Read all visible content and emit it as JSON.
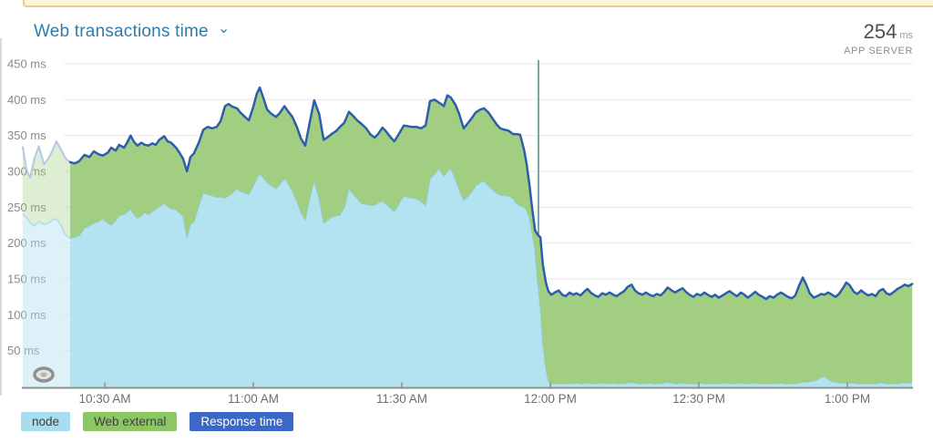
{
  "header": {
    "title": "Web transactions time",
    "chevron_icon": "⌄",
    "value": "254",
    "value_unit": "ms",
    "value_caption": "APP SERVER"
  },
  "legend": [
    {
      "label": "node",
      "bg": "#a6ddef",
      "fg": "#3f3f3f"
    },
    {
      "label": "Web external",
      "bg": "#8cc763",
      "fg": "#3f3f3f"
    },
    {
      "label": "Response time",
      "bg": "#3b68c7",
      "fg": "#ffffff"
    }
  ],
  "colors": {
    "node_fill": "#abdfee",
    "web_external_fill": "#9aca77",
    "response_line": "#2c5ea9",
    "node_edge_line": "#8fcde5",
    "faded_top_line": "#b3c7e8",
    "marker_line": "#76a4a0",
    "gridline": "#e8e8e8",
    "axis_line": "#909090",
    "axis_text": "#8a8a8a",
    "x_text": "#6e6e6e",
    "banner_fill": "#fdf4da",
    "banner_border": "#f3c987"
  },
  "chart_data": {
    "type": "area",
    "stacked": true,
    "title": "Web transactions time",
    "ylabel": "ms",
    "ylim": [
      0,
      450
    ],
    "grid": true,
    "legend_position": "bottom-left",
    "series_names": [
      "node",
      "Web external",
      "Response time"
    ],
    "note": "points are [minutes after 10:00 AM, node ms, response-time total ms]; Web external = response - node; left segment is rendered faded (older data); vertical teal marker just before 12:00 PM",
    "y_ticks": [
      {
        "value": 50,
        "label": "50 ms"
      },
      {
        "value": 100,
        "label": "100 ms"
      },
      {
        "value": 150,
        "label": "150 ms"
      },
      {
        "value": 200,
        "label": "200 ms"
      },
      {
        "value": 250,
        "label": "250 ms"
      },
      {
        "value": 300,
        "label": "300 ms"
      },
      {
        "value": 350,
        "label": "350 ms"
      },
      {
        "value": 400,
        "label": "400 ms"
      },
      {
        "value": 450,
        "label": "450 ms"
      }
    ],
    "x_ticks": [
      {
        "minutes": 30,
        "label": "10:30 AM"
      },
      {
        "minutes": 60,
        "label": "11:00 AM"
      },
      {
        "minutes": 90,
        "label": "11:30 AM"
      },
      {
        "minutes": 120,
        "label": "12:00 PM"
      },
      {
        "minutes": 150,
        "label": "12:30 PM"
      },
      {
        "minutes": 180,
        "label": "1:00 PM"
      }
    ],
    "marker_line_minutes": 117.6,
    "faded_points": [
      [
        13.4,
        240,
        335
      ],
      [
        14.2,
        236,
        302
      ],
      [
        14.9,
        228,
        291
      ],
      [
        15.8,
        224,
        318
      ],
      [
        16.7,
        230,
        335
      ],
      [
        17.7,
        226,
        310
      ],
      [
        18.6,
        228,
        318
      ],
      [
        19.5,
        232,
        330
      ],
      [
        20.2,
        234,
        342
      ],
      [
        21.2,
        224,
        330
      ],
      [
        21.9,
        213,
        320
      ],
      [
        22.5,
        209,
        315
      ],
      [
        23.0,
        207,
        313
      ]
    ],
    "points": [
      [
        23.0,
        207,
        313
      ],
      [
        23.9,
        208,
        311
      ],
      [
        24.8,
        210,
        314
      ],
      [
        25.9,
        221,
        323
      ],
      [
        26.9,
        224,
        320
      ],
      [
        27.8,
        228,
        328
      ],
      [
        28.7,
        230,
        324
      ],
      [
        29.6,
        234,
        322
      ],
      [
        30.6,
        228,
        326
      ],
      [
        31.3,
        225,
        333
      ],
      [
        32.2,
        232,
        329
      ],
      [
        32.9,
        238,
        337
      ],
      [
        33.9,
        240,
        333
      ],
      [
        34.6,
        244,
        341
      ],
      [
        35.2,
        247,
        350
      ],
      [
        35.9,
        240,
        341
      ],
      [
        36.6,
        235,
        336
      ],
      [
        37.4,
        238,
        340
      ],
      [
        38.1,
        243,
        337
      ],
      [
        38.8,
        240,
        336
      ],
      [
        39.6,
        244,
        339
      ],
      [
        40.3,
        247,
        337
      ],
      [
        41.0,
        251,
        344
      ],
      [
        42.0,
        255,
        349
      ],
      [
        42.7,
        251,
        342
      ],
      [
        43.4,
        248,
        340
      ],
      [
        44.4,
        247,
        333
      ],
      [
        45.1,
        242,
        326
      ],
      [
        45.8,
        238,
        318
      ],
      [
        46.6,
        208,
        300
      ],
      [
        47.3,
        226,
        320
      ],
      [
        48.0,
        230,
        325
      ],
      [
        49.0,
        252,
        340
      ],
      [
        49.9,
        270,
        358
      ],
      [
        50.8,
        268,
        362
      ],
      [
        51.7,
        266,
        360
      ],
      [
        52.6,
        264,
        362
      ],
      [
        53.4,
        264,
        370
      ],
      [
        54.3,
        263,
        391
      ],
      [
        55.0,
        266,
        394
      ],
      [
        55.8,
        270,
        390
      ],
      [
        56.7,
        276,
        388
      ],
      [
        57.4,
        272,
        382
      ],
      [
        58.3,
        270,
        376
      ],
      [
        59.1,
        268,
        371
      ],
      [
        60.0,
        280,
        390
      ],
      [
        60.7,
        290,
        408
      ],
      [
        61.3,
        297,
        417
      ],
      [
        62.0,
        291,
        403
      ],
      [
        62.8,
        285,
        386
      ],
      [
        63.7,
        280,
        380
      ],
      [
        64.6,
        276,
        376
      ],
      [
        65.3,
        282,
        381
      ],
      [
        66.3,
        290,
        391
      ],
      [
        67.0,
        284,
        384
      ],
      [
        67.9,
        272,
        376
      ],
      [
        68.8,
        258,
        362
      ],
      [
        69.6,
        244,
        346
      ],
      [
        70.5,
        232,
        336
      ],
      [
        71.4,
        262,
        368
      ],
      [
        72.3,
        287,
        399
      ],
      [
        73.3,
        262,
        380
      ],
      [
        74.2,
        228,
        344
      ],
      [
        75.1,
        232,
        348
      ],
      [
        75.8,
        236,
        352
      ],
      [
        76.7,
        238,
        356
      ],
      [
        77.5,
        239,
        362
      ],
      [
        78.4,
        250,
        368
      ],
      [
        79.3,
        276,
        383
      ],
      [
        80.2,
        268,
        377
      ],
      [
        81.0,
        262,
        371
      ],
      [
        81.9,
        255,
        366
      ],
      [
        82.8,
        254,
        360
      ],
      [
        83.6,
        253,
        352
      ],
      [
        84.5,
        253,
        347
      ],
      [
        85.2,
        256,
        352
      ],
      [
        86.1,
        259,
        361
      ],
      [
        86.9,
        254,
        355
      ],
      [
        87.8,
        248,
        347
      ],
      [
        88.5,
        244,
        342
      ],
      [
        89.4,
        255,
        352
      ],
      [
        90.4,
        266,
        364
      ],
      [
        91.1,
        264,
        363
      ],
      [
        92.0,
        263,
        362
      ],
      [
        92.9,
        262,
        362
      ],
      [
        93.9,
        258,
        360
      ],
      [
        94.8,
        253,
        364
      ],
      [
        95.7,
        290,
        398
      ],
      [
        96.6,
        296,
        400
      ],
      [
        97.5,
        304,
        396
      ],
      [
        98.5,
        293,
        391
      ],
      [
        99.2,
        300,
        406
      ],
      [
        99.9,
        304,
        403
      ],
      [
        100.9,
        288,
        392
      ],
      [
        101.6,
        274,
        380
      ],
      [
        102.5,
        260,
        360
      ],
      [
        103.2,
        264,
        366
      ],
      [
        104.2,
        272,
        375
      ],
      [
        104.9,
        280,
        382
      ],
      [
        105.8,
        284,
        386
      ],
      [
        106.6,
        287,
        388
      ],
      [
        107.5,
        280,
        382
      ],
      [
        108.2,
        275,
        375
      ],
      [
        109.1,
        270,
        366
      ],
      [
        109.9,
        267,
        360
      ],
      [
        110.8,
        266,
        358
      ],
      [
        111.5,
        266,
        357
      ],
      [
        112.5,
        262,
        352
      ],
      [
        113.2,
        255,
        352
      ],
      [
        113.9,
        252,
        351
      ],
      [
        114.7,
        250,
        330
      ],
      [
        115.2,
        246,
        311
      ],
      [
        115.8,
        235,
        280
      ],
      [
        116.3,
        215,
        250
      ],
      [
        116.9,
        190,
        218
      ],
      [
        117.4,
        150,
        212
      ],
      [
        118.0,
        110,
        208
      ],
      [
        118.5,
        60,
        170
      ],
      [
        119.1,
        25,
        145
      ],
      [
        119.6,
        8,
        133
      ],
      [
        120.2,
        4,
        128
      ],
      [
        120.9,
        4,
        131
      ],
      [
        121.7,
        4,
        134
      ],
      [
        122.4,
        4,
        128
      ],
      [
        123.1,
        4,
        126
      ],
      [
        123.9,
        4,
        131
      ],
      [
        124.6,
        4,
        128
      ],
      [
        125.3,
        5,
        130
      ],
      [
        126.1,
        4,
        127
      ],
      [
        126.8,
        4,
        132
      ],
      [
        127.5,
        5,
        136
      ],
      [
        128.3,
        4,
        130
      ],
      [
        129.0,
        4,
        127
      ],
      [
        129.7,
        4,
        125
      ],
      [
        130.5,
        5,
        130
      ],
      [
        131.2,
        4,
        128
      ],
      [
        132.0,
        4,
        131
      ],
      [
        132.7,
        5,
        128
      ],
      [
        133.4,
        4,
        126
      ],
      [
        134.2,
        4,
        130
      ],
      [
        134.9,
        4,
        133
      ],
      [
        135.6,
        5,
        139
      ],
      [
        136.4,
        6,
        142
      ],
      [
        137.1,
        5,
        134
      ],
      [
        137.8,
        4,
        130
      ],
      [
        138.6,
        4,
        128
      ],
      [
        139.3,
        4,
        131
      ],
      [
        140.0,
        5,
        128
      ],
      [
        140.8,
        4,
        126
      ],
      [
        141.5,
        4,
        129
      ],
      [
        142.3,
        4,
        127
      ],
      [
        143.0,
        5,
        132
      ],
      [
        143.7,
        6,
        138
      ],
      [
        144.5,
        5,
        134
      ],
      [
        145.2,
        4,
        131
      ],
      [
        145.9,
        4,
        134
      ],
      [
        146.7,
        5,
        137
      ],
      [
        147.4,
        4,
        132
      ],
      [
        148.1,
        4,
        128
      ],
      [
        148.9,
        4,
        125
      ],
      [
        149.6,
        4,
        129
      ],
      [
        150.4,
        5,
        127
      ],
      [
        151.1,
        4,
        131
      ],
      [
        151.8,
        4,
        128
      ],
      [
        152.6,
        4,
        125
      ],
      [
        153.3,
        4,
        128
      ],
      [
        154.0,
        4,
        124
      ],
      [
        154.8,
        4,
        127
      ],
      [
        155.5,
        5,
        130
      ],
      [
        156.2,
        4,
        133
      ],
      [
        157.0,
        4,
        129
      ],
      [
        157.7,
        4,
        126
      ],
      [
        158.5,
        5,
        131
      ],
      [
        159.2,
        4,
        128
      ],
      [
        159.9,
        4,
        124
      ],
      [
        160.7,
        4,
        128
      ],
      [
        161.4,
        5,
        132
      ],
      [
        162.1,
        4,
        128
      ],
      [
        162.9,
        4,
        125
      ],
      [
        163.6,
        4,
        122
      ],
      [
        164.3,
        4,
        126
      ],
      [
        165.1,
        4,
        124
      ],
      [
        165.8,
        4,
        128
      ],
      [
        166.6,
        5,
        131
      ],
      [
        167.3,
        4,
        128
      ],
      [
        168.0,
        4,
        125
      ],
      [
        168.8,
        4,
        123
      ],
      [
        169.5,
        4,
        127
      ],
      [
        170.2,
        5,
        140
      ],
      [
        171.0,
        6,
        152
      ],
      [
        171.7,
        6,
        142
      ],
      [
        172.4,
        7,
        130
      ],
      [
        173.2,
        8,
        124
      ],
      [
        173.9,
        9,
        126
      ],
      [
        174.7,
        13,
        129
      ],
      [
        175.4,
        14,
        128
      ],
      [
        176.1,
        10,
        131
      ],
      [
        176.9,
        7,
        128
      ],
      [
        177.6,
        6,
        125
      ],
      [
        178.3,
        5,
        129
      ],
      [
        179.1,
        5,
        137
      ],
      [
        179.8,
        5,
        145
      ],
      [
        180.5,
        5,
        141
      ],
      [
        181.3,
        5,
        132
      ],
      [
        182.0,
        4,
        129
      ],
      [
        182.8,
        4,
        134
      ],
      [
        183.5,
        4,
        130
      ],
      [
        184.2,
        4,
        127
      ],
      [
        185.0,
        4,
        129
      ],
      [
        185.7,
        4,
        126
      ],
      [
        186.4,
        5,
        133
      ],
      [
        187.2,
        5,
        136
      ],
      [
        187.9,
        4,
        130
      ],
      [
        188.6,
        4,
        128
      ],
      [
        189.4,
        4,
        132
      ],
      [
        190.1,
        4,
        136
      ],
      [
        190.9,
        5,
        139
      ],
      [
        191.6,
        5,
        142
      ],
      [
        192.3,
        5,
        140
      ],
      [
        193.1,
        5,
        143
      ]
    ]
  }
}
